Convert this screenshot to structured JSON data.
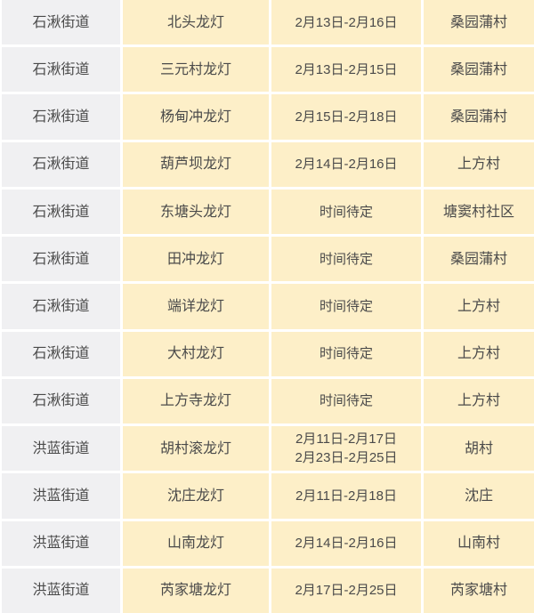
{
  "table": {
    "columns": [
      "street",
      "event",
      "time",
      "village"
    ],
    "colors": {
      "street_col_bg": "#f0f0f2",
      "cell_bg": "#fdefc8",
      "text": "#4a4a4a",
      "divider": "#ffffff"
    },
    "rows": [
      {
        "street": "石湫街道",
        "event": "北头龙灯",
        "time": "2月13日-2月16日",
        "village": "桑园蒲村"
      },
      {
        "street": "石湫街道",
        "event": "三元村龙灯",
        "time": "2月13日-2月15日",
        "village": "桑园蒲村"
      },
      {
        "street": "石湫街道",
        "event": "杨甸冲龙灯",
        "time": "2月15日-2月18日",
        "village": "桑园蒲村"
      },
      {
        "street": "石湫街道",
        "event": "葫芦坝龙灯",
        "time": "2月14日-2月16日",
        "village": "上方村"
      },
      {
        "street": "石湫街道",
        "event": "东塘头龙灯",
        "time": "时间待定",
        "village": "塘窦村社区"
      },
      {
        "street": "石湫街道",
        "event": "田冲龙灯",
        "time": "时间待定",
        "village": "桑园蒲村"
      },
      {
        "street": "石湫街道",
        "event": "端详龙灯",
        "time": "时间待定",
        "village": "上方村"
      },
      {
        "street": "石湫街道",
        "event": "大村龙灯",
        "time": "时间待定",
        "village": "上方村"
      },
      {
        "street": "石湫街道",
        "event": "上方寺龙灯",
        "time": "时间待定",
        "village": "上方村"
      },
      {
        "street": "洪蓝街道",
        "event": "胡村滚龙灯",
        "time": "2月11日-2月17日\n2月23日-2月25日",
        "village": "胡村"
      },
      {
        "street": "洪蓝街道",
        "event": "沈庄龙灯",
        "time": "2月11日-2月18日",
        "village": "沈庄"
      },
      {
        "street": "洪蓝街道",
        "event": "山南龙灯",
        "time": "2月14日-2月16日",
        "village": "山南村"
      },
      {
        "street": "洪蓝街道",
        "event": "芮家塘龙灯",
        "time": "2月17日-2月25日",
        "village": "芮家塘村"
      }
    ]
  }
}
